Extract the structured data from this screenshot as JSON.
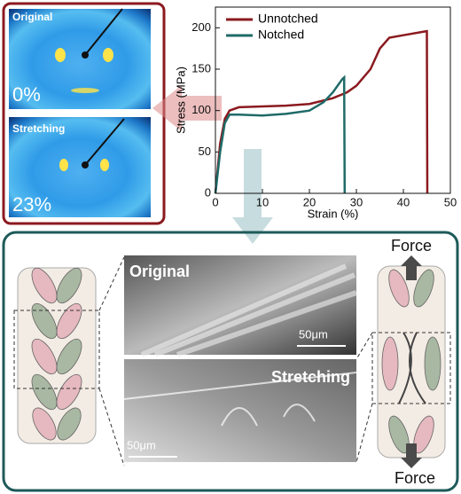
{
  "chart_data": {
    "type": "line",
    "xlabel": "Strain (%)",
    "ylabel": "Stress (MPa)",
    "xlim": [
      0,
      50
    ],
    "ylim": [
      0,
      225
    ],
    "xticks": [
      0,
      10,
      20,
      30,
      40,
      50
    ],
    "yticks": [
      0,
      50,
      100,
      150,
      200
    ],
    "legend": "upper-left",
    "series": [
      {
        "name": "Unnotched",
        "color": "#8b1a1f",
        "x": [
          0,
          1,
          2,
          3,
          5,
          10,
          15,
          20,
          25,
          28,
          30,
          33,
          35,
          37,
          40,
          44,
          45,
          45.1
        ],
        "values": [
          0,
          60,
          90,
          100,
          104,
          105,
          106,
          108,
          115,
          122,
          130,
          150,
          175,
          188,
          191,
          195,
          196,
          0
        ]
      },
      {
        "name": "Notched",
        "color": "#1f6b68",
        "x": [
          0,
          1,
          2,
          3,
          5,
          10,
          15,
          20,
          23,
          25,
          27,
          27.4,
          27.5
        ],
        "values": [
          0,
          50,
          85,
          95,
          95,
          94,
          96,
          100,
          110,
          122,
          138,
          140,
          0
        ]
      }
    ]
  },
  "labels": {
    "saxs_original": "Original",
    "saxs_strain_0": "0%",
    "saxs_stretching": "Stretching",
    "saxs_strain_23": "23%",
    "sem_original": "Original",
    "sem_scale_1": "50μm",
    "sem_stretching": "Stretching",
    "sem_scale_2": "50μm",
    "force_top": "Force",
    "force_bottom": "Force"
  }
}
